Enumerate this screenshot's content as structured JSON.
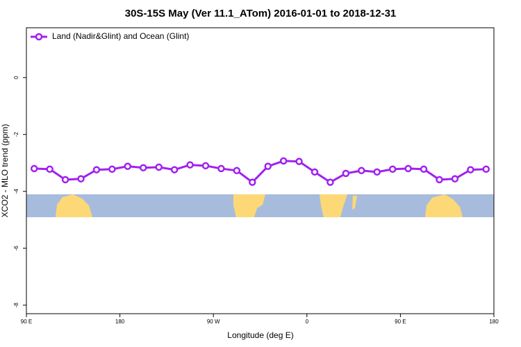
{
  "chart_data": {
    "type": "line",
    "title": "30S-15S May (Ver 11.1_ATom)   2016-01-01 to 2018-12-31",
    "x_label": "Longitude (deg E)",
    "y_label": "XCO2 - MLO trend (ppm)",
    "x": [
      97.5,
      112.5,
      127.5,
      142.5,
      157.5,
      172.5,
      187.5,
      202.5,
      217.5,
      232.5,
      247.5,
      262.5,
      277.5,
      292.5,
      307.5,
      322.5,
      337.5,
      352.5,
      367.5,
      382.5,
      397.5,
      412.5,
      427.5,
      442.5,
      457.5,
      472.5,
      487.5,
      502.5,
      517.5,
      532.5
    ],
    "series": [
      {
        "name": "Land (Nadir&Glint) and Ocean (Glint)",
        "color": "#a020f0",
        "values": [
          -3.2,
          -3.22,
          -3.59,
          -3.56,
          -3.24,
          -3.22,
          -3.12,
          -3.17,
          -3.15,
          -3.24,
          -3.07,
          -3.1,
          -3.2,
          -3.27,
          -3.68,
          -3.12,
          -2.93,
          -2.95,
          -3.32,
          -3.68,
          -3.37,
          -3.27,
          -3.32,
          -3.22,
          -3.2,
          -3.22,
          -3.59,
          -3.56,
          -3.24,
          -3.22
        ]
      }
    ],
    "xlim": [
      90,
      540
    ],
    "xticks": [
      {
        "value": 90,
        "label": "90 E"
      },
      180,
      {
        "value": 270,
        "label": "90 W"
      },
      {
        "value": 360,
        "label": "0"
      },
      {
        "value": 450,
        "label": "90 E"
      },
      {
        "value": 540,
        "label": "180"
      }
    ],
    "ylim": [
      -8.3,
      1.75
    ],
    "yticks": [
      0,
      -2,
      -4,
      -6,
      -8
    ],
    "legend_position": "top-left"
  }
}
